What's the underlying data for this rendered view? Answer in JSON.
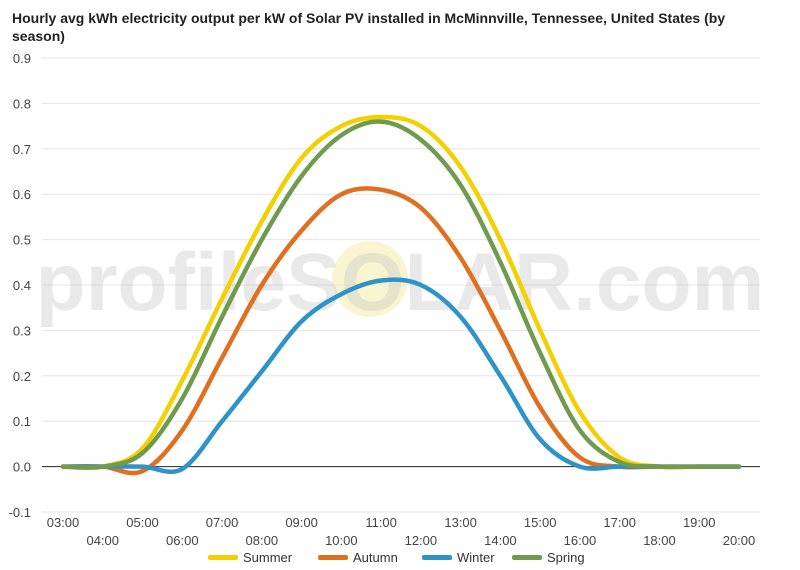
{
  "chart_data": {
    "type": "line",
    "title": "Hourly avg kWh electricity output per kW of Solar PV installed in McMinnville, Tennessee, United States (by season)",
    "xlabel": "",
    "ylabel": "",
    "x": [
      "03:00",
      "04:00",
      "05:00",
      "06:00",
      "07:00",
      "08:00",
      "09:00",
      "10:00",
      "11:00",
      "12:00",
      "13:00",
      "14:00",
      "15:00",
      "16:00",
      "17:00",
      "18:00",
      "19:00",
      "20:00"
    ],
    "ylim": [
      -0.1,
      0.9
    ],
    "yticks": [
      "-0.1",
      "0.0",
      "0.1",
      "0.2",
      "0.3",
      "0.4",
      "0.5",
      "0.6",
      "0.7",
      "0.8",
      "0.9"
    ],
    "grid": true,
    "legend_position": "bottom",
    "watermark": "profileSOLAR.com",
    "series": [
      {
        "name": "Summer",
        "color": "#F4D000",
        "values": [
          0.0,
          0.0,
          0.04,
          0.19,
          0.37,
          0.54,
          0.68,
          0.75,
          0.77,
          0.75,
          0.66,
          0.5,
          0.3,
          0.12,
          0.02,
          0.0,
          0.0,
          0.0
        ]
      },
      {
        "name": "Autumn",
        "color": "#E07020",
        "values": [
          0.0,
          0.0,
          -0.01,
          0.08,
          0.24,
          0.4,
          0.52,
          0.6,
          0.61,
          0.57,
          0.46,
          0.3,
          0.13,
          0.02,
          0.0,
          0.0,
          0.0,
          0.0
        ]
      },
      {
        "name": "Winter",
        "color": "#2E93C8",
        "values": [
          0.0,
          0.0,
          0.0,
          -0.005,
          0.1,
          0.21,
          0.32,
          0.38,
          0.41,
          0.4,
          0.33,
          0.2,
          0.06,
          0.0,
          0.0,
          0.0,
          0.0,
          0.0
        ]
      },
      {
        "name": "Spring",
        "color": "#6E9B4E",
        "values": [
          0.0,
          0.0,
          0.03,
          0.15,
          0.33,
          0.5,
          0.64,
          0.73,
          0.76,
          0.72,
          0.62,
          0.45,
          0.25,
          0.08,
          0.01,
          0.0,
          0.0,
          0.0
        ]
      }
    ]
  }
}
